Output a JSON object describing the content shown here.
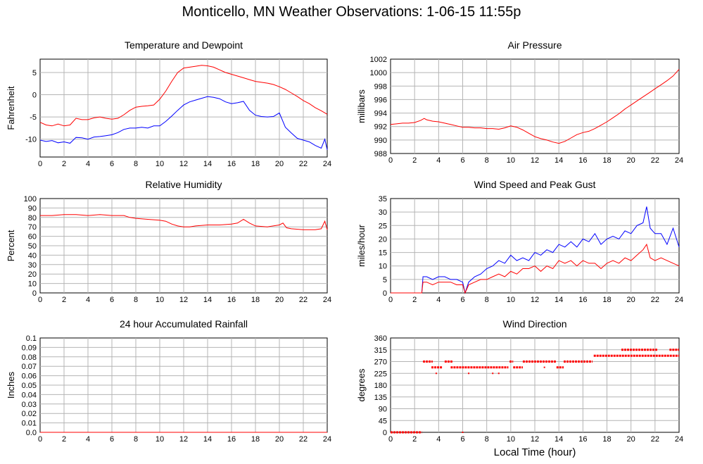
{
  "title": "Monticello, MN Weather Observations: 1-06-15 11:55p",
  "xlabel_bottom": "Local Time (hour)",
  "colors": {
    "red": "#ff0000",
    "blue": "#0000ff",
    "grid": "#b4b4b4"
  },
  "x_ticks": [
    "0",
    "2",
    "4",
    "6",
    "8",
    "10",
    "12",
    "14",
    "16",
    "18",
    "20",
    "22",
    "24"
  ],
  "chart_data": [
    {
      "type": "line",
      "title": "Temperature and Dewpoint",
      "ylabel": "Fahrenheit",
      "ylim": [
        -14,
        8
      ],
      "xlim": [
        0,
        24
      ],
      "yticks": [
        "5",
        "0",
        "-5",
        "-10"
      ],
      "ytick_values": [
        5,
        0,
        -5,
        -10
      ],
      "grid": true,
      "series": [
        {
          "color": "#ff0000",
          "x": [
            0,
            0.5,
            1,
            1.5,
            2,
            2.5,
            3,
            3.5,
            4,
            4.5,
            5,
            5.5,
            6,
            6.5,
            7,
            7.5,
            8,
            8.5,
            9,
            9.5,
            10,
            10.5,
            11,
            11.5,
            12,
            12.5,
            13,
            13.5,
            14,
            14.5,
            15,
            15.5,
            16,
            16.5,
            17,
            17.5,
            18,
            18.5,
            19,
            19.5,
            20,
            20.5,
            21,
            21.5,
            22,
            22.5,
            23,
            23.5,
            24
          ],
          "y": [
            -6.2,
            -6.8,
            -7.0,
            -6.6,
            -7.0,
            -6.8,
            -5.3,
            -5.6,
            -5.6,
            -5.2,
            -5.0,
            -5.3,
            -5.5,
            -5.3,
            -4.5,
            -3.5,
            -2.8,
            -2.6,
            -2.5,
            -2.3,
            -1.0,
            0.8,
            3.0,
            5.0,
            6.0,
            6.2,
            6.4,
            6.6,
            6.5,
            6.2,
            5.6,
            5.0,
            4.6,
            4.2,
            3.8,
            3.4,
            3.0,
            2.8,
            2.6,
            2.3,
            1.8,
            1.2,
            0.4,
            -0.4,
            -1.3,
            -2.0,
            -2.9,
            -3.6,
            -4.4
          ]
        },
        {
          "color": "#0000ff",
          "x": [
            0,
            0.5,
            1,
            1.5,
            2,
            2.5,
            3,
            3.5,
            4,
            4.5,
            5,
            5.5,
            6,
            6.5,
            7,
            7.5,
            8,
            8.5,
            9,
            9.5,
            10,
            10.5,
            11,
            11.5,
            12,
            12.5,
            13,
            13.5,
            14,
            14.5,
            15,
            15.5,
            16,
            16.5,
            17,
            17.5,
            18,
            18.5,
            19,
            19.5,
            20,
            20.5,
            21,
            21.5,
            22,
            22.5,
            23,
            23.5,
            23.8,
            24
          ],
          "y": [
            -10.2,
            -10.5,
            -10.3,
            -10.8,
            -10.6,
            -10.9,
            -9.6,
            -9.7,
            -10.0,
            -9.5,
            -9.4,
            -9.2,
            -9.0,
            -8.5,
            -7.8,
            -7.5,
            -7.5,
            -7.3,
            -7.5,
            -7.0,
            -7.0,
            -6.0,
            -4.8,
            -3.5,
            -2.3,
            -1.6,
            -1.2,
            -0.8,
            -0.4,
            -0.6,
            -0.9,
            -1.6,
            -2.0,
            -1.8,
            -1.5,
            -3.5,
            -4.6,
            -4.9,
            -5.0,
            -4.9,
            -4.1,
            -7.3,
            -8.6,
            -9.8,
            -10.2,
            -10.6,
            -11.4,
            -12.0,
            -10.0,
            -12.4
          ]
        }
      ]
    },
    {
      "type": "line",
      "title": "Air Pressure",
      "ylabel": "millibars",
      "ylim": [
        988,
        1002
      ],
      "xlim": [
        0,
        24
      ],
      "yticks": [
        "1002",
        "1000",
        "998",
        "996",
        "994",
        "992",
        "990",
        "988"
      ],
      "ytick_values": [
        1002,
        1000,
        998,
        996,
        994,
        992,
        990,
        988
      ],
      "grid": true,
      "series": [
        {
          "color": "#ff0000",
          "x": [
            0,
            0.5,
            1,
            1.5,
            2,
            2.5,
            2.8,
            3,
            3.5,
            4,
            4.5,
            5,
            5.5,
            6,
            6.5,
            7,
            7.5,
            8,
            8.5,
            9,
            9.5,
            10,
            10.5,
            11,
            11.5,
            12,
            12.5,
            13,
            13.5,
            14,
            14.5,
            15,
            15.5,
            16,
            16.5,
            17,
            17.5,
            18,
            18.5,
            19,
            19.5,
            20,
            20.5,
            21,
            21.5,
            22,
            22.5,
            23,
            23.5,
            24
          ],
          "y": [
            992.3,
            992.4,
            992.5,
            992.5,
            992.6,
            992.9,
            993.2,
            993.0,
            992.8,
            992.7,
            992.5,
            992.3,
            992.1,
            991.9,
            991.9,
            991.8,
            991.8,
            991.7,
            991.7,
            991.6,
            991.8,
            992.1,
            991.9,
            991.5,
            991.0,
            990.5,
            990.2,
            990.0,
            989.7,
            989.5,
            989.8,
            990.3,
            990.8,
            991.1,
            991.3,
            991.7,
            992.2,
            992.7,
            993.3,
            993.9,
            994.6,
            995.2,
            995.8,
            996.4,
            997.0,
            997.6,
            998.2,
            998.8,
            999.5,
            1000.5
          ]
        }
      ]
    },
    {
      "type": "line",
      "title": "Relative Humidity",
      "ylabel": "Percent",
      "ylim": [
        0,
        100
      ],
      "xlim": [
        0,
        24
      ],
      "yticks": [
        "100",
        "90",
        "80",
        "70",
        "60",
        "50",
        "40",
        "30",
        "20",
        "10",
        "0"
      ],
      "ytick_values": [
        100,
        90,
        80,
        70,
        60,
        50,
        40,
        30,
        20,
        10,
        0
      ],
      "grid": true,
      "series": [
        {
          "color": "#ff0000",
          "x": [
            0,
            1,
            2,
            3,
            4,
            5,
            6,
            7,
            7.5,
            8,
            9,
            10,
            10.5,
            11,
            11.5,
            12,
            12.5,
            13,
            14,
            15,
            16,
            16.5,
            17,
            17.5,
            18,
            19,
            20,
            20.3,
            20.6,
            21,
            22,
            23,
            23.5,
            23.8,
            24
          ],
          "y": [
            82,
            82,
            83,
            83,
            82,
            83,
            82,
            82,
            80,
            79,
            78,
            77,
            76,
            73,
            71,
            70,
            70,
            71,
            72,
            72,
            73,
            74,
            78,
            74,
            71,
            70,
            72,
            74,
            69,
            68,
            67,
            67,
            68,
            76,
            67
          ]
        }
      ]
    },
    {
      "type": "line",
      "title": "Wind Speed and Peak Gust",
      "ylabel": "miles/hour",
      "ylim": [
        0,
        35
      ],
      "xlim": [
        0,
        24
      ],
      "yticks": [
        "35",
        "30",
        "25",
        "20",
        "15",
        "10",
        "5",
        "0"
      ],
      "ytick_values": [
        35,
        30,
        25,
        20,
        15,
        10,
        5,
        0
      ],
      "grid": true,
      "series": [
        {
          "color": "#0000ff",
          "x": [
            0,
            1,
            2,
            2.6,
            2.7,
            3,
            3.5,
            4,
            4.5,
            5,
            5.5,
            6,
            6.2,
            6.5,
            7,
            7.5,
            8,
            8.5,
            9,
            9.5,
            10,
            10.5,
            11,
            11.5,
            12,
            12.5,
            13,
            13.5,
            14,
            14.5,
            15,
            15.5,
            16,
            16.5,
            17,
            17.5,
            18,
            18.5,
            19,
            19.5,
            20,
            20.5,
            21,
            21.3,
            21.6,
            22,
            22.5,
            23,
            23.5,
            24
          ],
          "y": [
            0,
            0,
            0,
            0,
            6,
            6,
            5,
            6,
            6,
            5,
            5,
            4,
            0,
            4,
            6,
            7,
            9,
            10,
            12,
            11,
            14,
            12,
            13,
            12,
            15,
            14,
            16,
            15,
            18,
            17,
            19,
            17,
            20,
            19,
            22,
            18,
            20,
            21,
            20,
            23,
            22,
            25,
            26,
            32,
            24,
            22,
            22,
            18,
            24,
            17
          ]
        },
        {
          "color": "#ff0000",
          "x": [
            0,
            1,
            2,
            2.6,
            2.7,
            3,
            3.5,
            4,
            4.5,
            5,
            5.5,
            6,
            6.2,
            6.5,
            7,
            7.5,
            8,
            8.5,
            9,
            9.5,
            10,
            10.5,
            11,
            11.5,
            12,
            12.5,
            13,
            13.5,
            14,
            14.5,
            15,
            15.5,
            16,
            16.5,
            17,
            17.5,
            18,
            18.5,
            19,
            19.5,
            20,
            20.5,
            21,
            21.3,
            21.6,
            22,
            22.5,
            23,
            23.5,
            24
          ],
          "y": [
            0,
            0,
            0,
            0,
            4,
            4,
            3,
            4,
            4,
            4,
            3,
            3,
            0,
            3,
            4,
            5,
            5,
            6,
            7,
            6,
            8,
            7,
            9,
            9,
            10,
            8,
            10,
            9,
            12,
            11,
            12,
            10,
            12,
            11,
            11,
            9,
            11,
            12,
            11,
            13,
            12,
            14,
            16,
            18,
            13,
            12,
            13,
            12,
            11,
            10
          ]
        }
      ]
    },
    {
      "type": "line",
      "title": "24 hour Accumulated Rainfall",
      "ylabel": "Inches",
      "ylim": [
        0,
        0.1
      ],
      "xlim": [
        0,
        24
      ],
      "yticks": [
        "0.1",
        "0.09",
        "0.08",
        "0.07",
        "0.06",
        "0.05",
        "0.04",
        "0.03",
        "0.02",
        "0.01",
        "0.0"
      ],
      "ytick_values": [
        0.1,
        0.09,
        0.08,
        0.07,
        0.06,
        0.05,
        0.04,
        0.03,
        0.02,
        0.01,
        0
      ],
      "grid": true,
      "series": [
        {
          "color": "#ff0000",
          "x": [
            0,
            24
          ],
          "y": [
            0,
            0
          ]
        }
      ]
    },
    {
      "type": "scatter",
      "title": "Wind Direction",
      "ylabel": "degrees",
      "ylim": [
        0,
        360
      ],
      "xlim": [
        0,
        24
      ],
      "yticks": [
        "360",
        "315",
        "270",
        "225",
        "180",
        "135",
        "90",
        "45",
        "0"
      ],
      "ytick_values": [
        360,
        315,
        270,
        225,
        180,
        135,
        90,
        45,
        0
      ],
      "grid": true,
      "series": [
        {
          "color": "#ff0000",
          "segments": [
            {
              "y": 0,
              "x0": 0,
              "x1": 2.6
            },
            {
              "y": 270,
              "x0": 2.7,
              "x1": 3.5
            },
            {
              "y": 248,
              "x0": 3.4,
              "x1": 4.3
            },
            {
              "y": 270,
              "x0": 4.5,
              "x1": 5.2
            },
            {
              "y": 248,
              "x0": 5.0,
              "x1": 9.8
            },
            {
              "y": 270,
              "x0": 9.9,
              "x1": 10.2
            },
            {
              "y": 248,
              "x0": 10.2,
              "x1": 11.0
            },
            {
              "y": 270,
              "x0": 11.0,
              "x1": 13.8
            },
            {
              "y": 248,
              "x0": 13.8,
              "x1": 14.4
            },
            {
              "y": 270,
              "x0": 14.4,
              "x1": 16.8
            },
            {
              "y": 292,
              "x0": 16.9,
              "x1": 24
            },
            {
              "y": 315,
              "x0": 19.2,
              "x1": 22.2
            },
            {
              "y": 315,
              "x0": 23.2,
              "x1": 24
            }
          ],
          "points": [
            {
              "x": 3.8,
              "y": 225
            },
            {
              "x": 6.0,
              "y": 0
            },
            {
              "x": 6.5,
              "y": 225
            },
            {
              "x": 8.5,
              "y": 225
            },
            {
              "x": 9.0,
              "y": 225
            },
            {
              "x": 12.8,
              "y": 248
            }
          ]
        }
      ]
    }
  ]
}
